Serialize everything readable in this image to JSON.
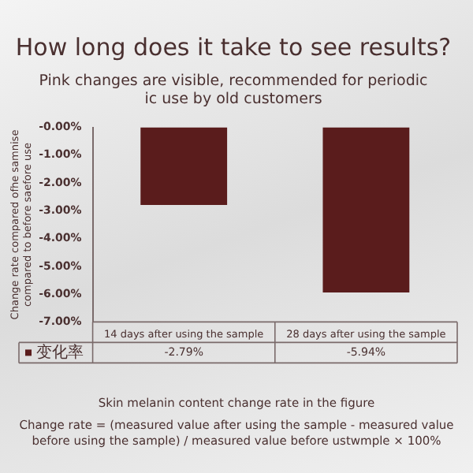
{
  "chart_data": {
    "type": "bar",
    "title": "How long does it take to see results?",
    "subtitle": "Pink changes are visible, recommended for periodic\nic use by old customers",
    "ylabel": "Change rate compared ofhe samnise\ncompared to before saefore use",
    "categories": [
      "14 days after using the sample",
      "28 days after using the sample"
    ],
    "series": [
      {
        "name": "变化率",
        "color": "#5a1c1c",
        "values": [
          -2.79,
          -5.94
        ],
        "value_labels": [
          "-2.79%",
          "-5.94%"
        ]
      }
    ],
    "ylim": [
      -7,
      0
    ],
    "yticks": [
      {
        "value": 0,
        "label": "-0.00%"
      },
      {
        "value": -1,
        "label": "-1.00%"
      },
      {
        "value": -2,
        "label": "-2.00%"
      },
      {
        "value": -3,
        "label": "-3.00%"
      },
      {
        "value": -4,
        "label": "-4.00%"
      },
      {
        "value": -5,
        "label": "-5.00%"
      },
      {
        "value": -6,
        "label": "-6.00%"
      },
      {
        "value": -7,
        "label": "-7.00%"
      }
    ],
    "grid": false,
    "legend": "bottom left",
    "annotations": [
      "Skin melanin content change rate in the figure",
      "Change rate = (measured value after using the sample - measured value before using the sample) / measured value before ustwmple × 100%"
    ]
  }
}
